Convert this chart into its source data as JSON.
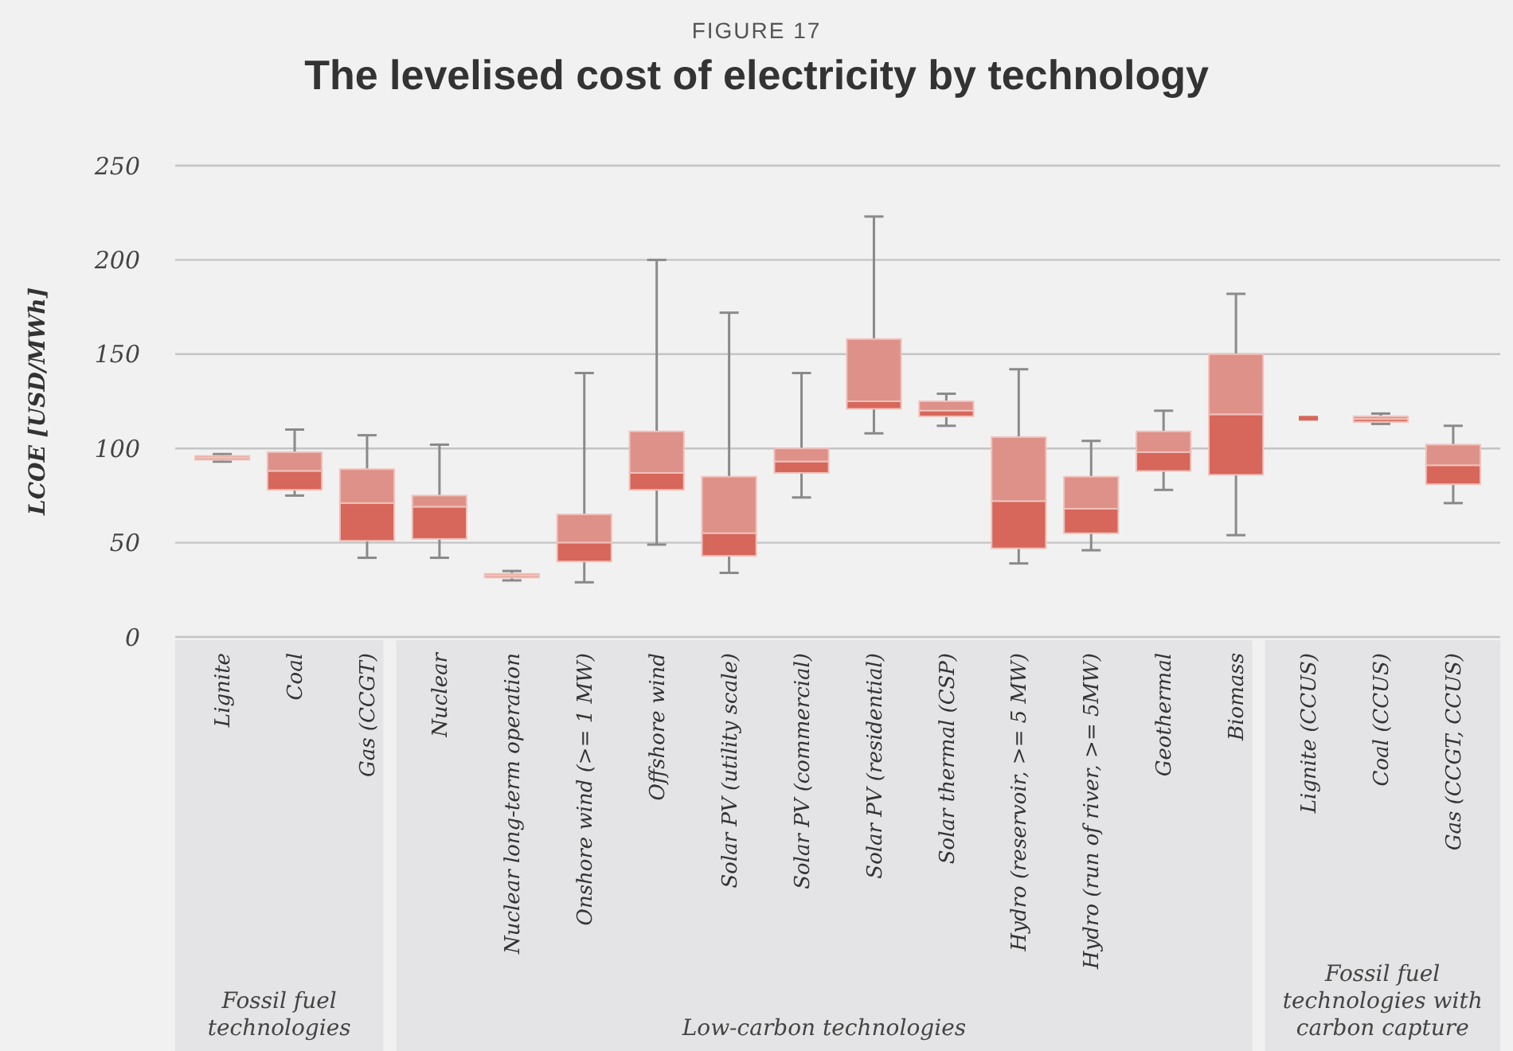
{
  "chart_data": {
    "type": "box",
    "subtitle": "FIGURE 17",
    "title": "The levelised cost of electricity by technology",
    "ylabel": "LCOE [USD/MWh]",
    "categories": [
      "Lignite",
      "Coal",
      "Gas (CCGT)",
      "Nuclear",
      "Nuclear long-term operation",
      "Onshore wind (>= 1 MW)",
      "Offshore wind",
      "Solar PV (utility scale)",
      "Solar PV (commercial)",
      "Solar PV (residential)",
      "Solar thermal (CSP)",
      "Hydro (reservoir, >= 5 MW)",
      "Hydro (run of river, >= 5MW)",
      "Geothermal",
      "Biomass",
      "Lignite (CCUS)",
      "Coal (CCUS)",
      "Gas (CCGT, CCUS)"
    ],
    "series": [
      {
        "color": "#d6675a",
        "boxes": [
          {
            "low": 93,
            "q1": 94,
            "median": 95,
            "q3": 96,
            "high": 97
          },
          {
            "low": 75,
            "q1": 78,
            "median": 88,
            "q3": 98,
            "high": 110
          },
          {
            "low": 42,
            "q1": 51,
            "median": 71,
            "q3": 89,
            "high": 107
          },
          {
            "low": 42,
            "q1": 52,
            "median": 69,
            "q3": 75,
            "high": 102
          },
          {
            "low": 30,
            "q1": 31.5,
            "median": 32.5,
            "q3": 33.5,
            "high": 35
          },
          {
            "low": 29,
            "q1": 40,
            "median": 50,
            "q3": 65,
            "high": 140
          },
          {
            "low": 49,
            "q1": 78,
            "median": 87,
            "q3": 109,
            "high": 200
          },
          {
            "low": 34,
            "q1": 43,
            "median": 55,
            "q3": 85,
            "high": 172
          },
          {
            "low": 74,
            "q1": 87,
            "median": 93,
            "q3": 100,
            "high": 140
          },
          {
            "low": 108,
            "q1": 121,
            "median": 125,
            "q3": 158,
            "high": 223
          },
          {
            "low": 112,
            "q1": 117,
            "median": 120,
            "q3": 125,
            "high": 129
          },
          {
            "low": 39,
            "q1": 47,
            "median": 72,
            "q3": 106,
            "high": 142
          },
          {
            "low": 46,
            "q1": 55,
            "median": 68,
            "q3": 85,
            "high": 104
          },
          {
            "low": 78,
            "q1": 88,
            "median": 98,
            "q3": 109,
            "high": 120
          },
          {
            "low": 54,
            "q1": 86,
            "median": 118,
            "q3": 150,
            "high": 182
          },
          {
            "low": 116,
            "q1": 116,
            "median": 116,
            "q3": 116,
            "high": 116
          },
          {
            "low": 113,
            "q1": 114,
            "median": 115.5,
            "q3": 117,
            "high": 118.5
          },
          {
            "low": 71,
            "q1": 81,
            "median": 91,
            "q3": 102,
            "high": 112
          }
        ]
      }
    ],
    "ylim": [
      0,
      250
    ],
    "yticks": [
      0,
      50,
      100,
      150,
      200,
      250
    ],
    "grid": "y",
    "annotations": [
      "Fossil fuel technologies",
      "Low-carbon technologies",
      "Fossil fuel technologies with carbon capture"
    ]
  }
}
